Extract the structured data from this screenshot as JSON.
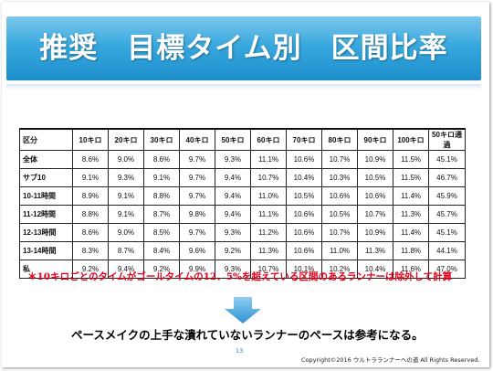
{
  "slide": {
    "title": "推奨　目標タイム別　区間比率",
    "note": "＊10キロごとのタイムがゴールタイムの12．5%を超えている区間のあるランナーは除外して計算",
    "conclusion": "ペースメイクの上手な潰れていないランナーのペースは参考になる。",
    "page_number": "13",
    "copyright": "Copyright©2016 ウルトラランナーへの道 All Rights Reserved."
  },
  "table": {
    "headers": [
      "区分",
      "10キロ",
      "20キロ",
      "30キロ",
      "40キロ",
      "50キロ",
      "60キロ",
      "70キロ",
      "80キロ",
      "90キロ",
      "100キロ",
      "50キロ通過"
    ],
    "rows": [
      {
        "label": "全体",
        "values": [
          "8.6%",
          "9.0%",
          "8.6%",
          "9.7%",
          "9.3%",
          "11.1%",
          "10.6%",
          "10.7%",
          "10.9%",
          "11.5%",
          "45.1%"
        ]
      },
      {
        "label": "サブ10",
        "values": [
          "9.1%",
          "9.3%",
          "9.1%",
          "9.7%",
          "9.4%",
          "10.7%",
          "10.4%",
          "10.3%",
          "10.5%",
          "11.5%",
          "46.7%"
        ]
      },
      {
        "label": "10-11時間",
        "values": [
          "8.9%",
          "9.1%",
          "8.8%",
          "9.7%",
          "9.4%",
          "11.0%",
          "10.5%",
          "10.6%",
          "10.6%",
          "11.4%",
          "45.9%"
        ]
      },
      {
        "label": "11-12時間",
        "values": [
          "8.8%",
          "9.1%",
          "8.7%",
          "9.8%",
          "9.4%",
          "11.1%",
          "10.6%",
          "10.5%",
          "10.7%",
          "11.3%",
          "45.7%"
        ]
      },
      {
        "label": "12-13時間",
        "values": [
          "8.6%",
          "9.0%",
          "8.5%",
          "9.7%",
          "9.3%",
          "11.2%",
          "10.6%",
          "10.7%",
          "10.9%",
          "11.4%",
          "45.1%"
        ]
      },
      {
        "label": "13-14時間",
        "values": [
          "8.3%",
          "8.7%",
          "8.4%",
          "9.6%",
          "9.2%",
          "11.3%",
          "10.6%",
          "11.0%",
          "11.3%",
          "11.8%",
          "44.1%"
        ]
      },
      {
        "label": "私",
        "values": [
          "9.2%",
          "9.4%",
          "9.2%",
          "9.9%",
          "9.3%",
          "10.7%",
          "10.1%",
          "10.2%",
          "10.4%",
          "11.6%",
          "47.0%"
        ]
      }
    ]
  },
  "colors": {
    "banner_top": "#7cc8ec",
    "banner_bottom": "#1d8fcc",
    "note_red": "#e2001a",
    "arrow_blue": "#4aa6dc"
  }
}
